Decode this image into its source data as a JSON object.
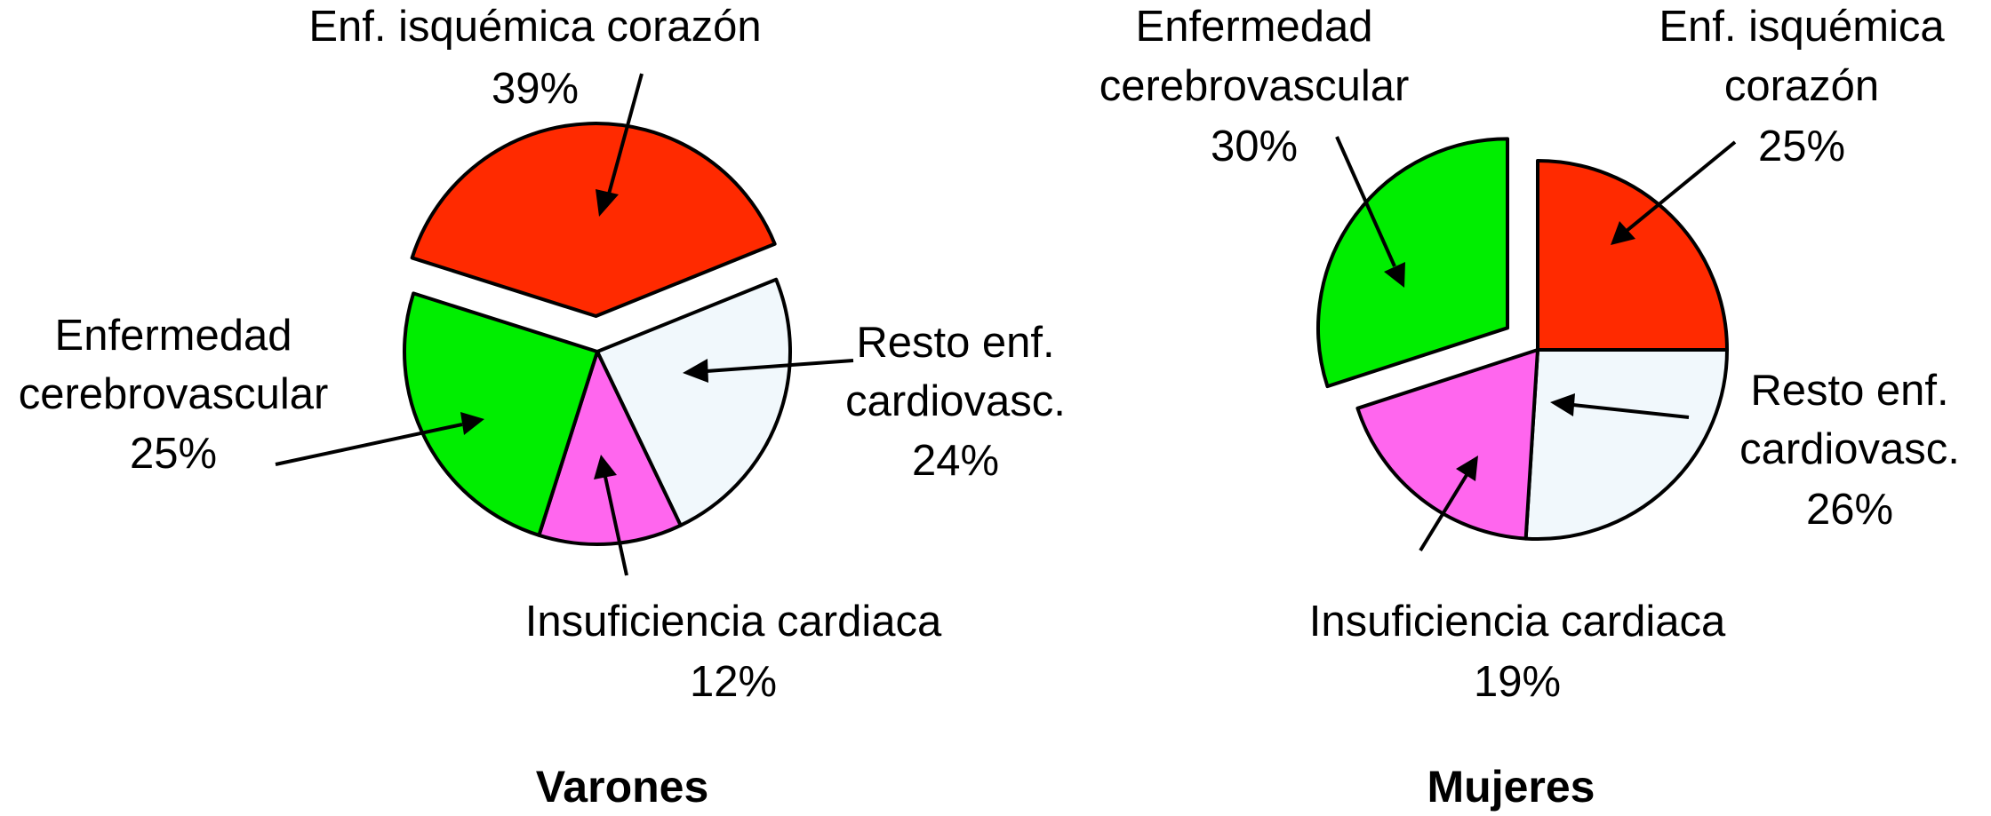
{
  "chart_data": [
    {
      "type": "pie",
      "title": "Varones",
      "slices": [
        {
          "label": "Enf. isquémica corazón",
          "value": 39,
          "value_text": "39%",
          "color": "#ff2a00"
        },
        {
          "label": "Resto enf. cardiovasc.",
          "value": 24,
          "value_text": "24%",
          "color": "#f1f8fc"
        },
        {
          "label": "Insuficiencia cardiaca",
          "value": 12,
          "value_text": "12%",
          "color": "#ff66ee"
        },
        {
          "label": "Enfermedad cerebrovascular",
          "value": 25,
          "value_text": "25%",
          "color": "#00ee00"
        }
      ],
      "exploded": [
        "Enf. isquémica corazón"
      ]
    },
    {
      "type": "pie",
      "title": "Mujeres",
      "slices": [
        {
          "label": "Enf. isquémica corazón",
          "value": 25,
          "value_text": "25%",
          "color": "#ff2a00"
        },
        {
          "label": "Resto enf. cardiovasc.",
          "value": 26,
          "value_text": "26%",
          "color": "#f1f8fc"
        },
        {
          "label": "Insuficiencia cardiaca",
          "value": 19,
          "value_text": "19%",
          "color": "#ff66ee"
        },
        {
          "label": "Enfermedad cerebrovascular",
          "value": 30,
          "value_text": "30%",
          "color": "#00ee00"
        }
      ],
      "exploded": [
        "Enfermedad cerebrovascular"
      ]
    }
  ],
  "labels": {
    "varones": {
      "isquemica": [
        "Enf. isquémica corazón",
        "39%"
      ],
      "cerebro": [
        "Enfermedad",
        "cerebrovascular",
        "25%"
      ],
      "resto": [
        "Resto enf.",
        "cardiovasc.",
        "24%"
      ],
      "insuf": [
        "Insuficiencia cardiaca",
        "12%"
      ]
    },
    "mujeres": {
      "cerebro": [
        "Enfermedad",
        "cerebrovascular",
        "30%"
      ],
      "isquemica": [
        "Enf. isquémica",
        "corazón",
        "25%"
      ],
      "resto": [
        "Resto enf.",
        "cardiovasc.",
        "26%"
      ],
      "insuf": [
        "Insuficiencia cardiaca",
        "19%"
      ]
    }
  }
}
